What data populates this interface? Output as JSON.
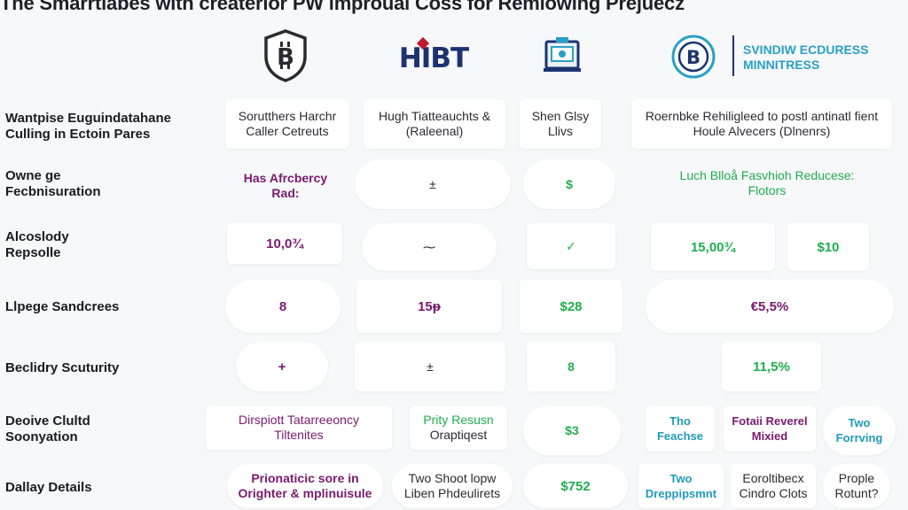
{
  "title": "The Smarrtlabes with createrlor PW improual Coss for Remlowing Prejuecz",
  "brand": {
    "hibt_text": "HIBT",
    "right_line1": "SVINDIW ECDURESS",
    "right_line2": "MINNITRESS",
    "colors": {
      "accent": "#2aa0c4",
      "navy": "#1d3370",
      "red": "#c0182c"
    }
  },
  "header_cells": {
    "c1": {
      "line1": "Sorutthers Harchr",
      "line2": "Caller Cetreuts"
    },
    "c2": {
      "line1": "Hugh Tiatteauchts &",
      "line2": "(Raleenal)"
    },
    "c3": {
      "line1": "Shen Glsy",
      "line2": "Llivs"
    },
    "c4": {
      "line1": "Roernbke Rehiligleed to postl antinatl fient",
      "line2": "Houle Alvecers (Dlnenrs)"
    }
  },
  "rows": [
    {
      "label1": "Wantpise Euguindatahane",
      "label2": "Culling in Ectoin Pares"
    },
    {
      "label1": "Owne ge",
      "label2": "Fecbnisuration"
    },
    {
      "label1": "Alcoslody",
      "label2": "Repsolle"
    },
    {
      "label1": "Llpege Sandcrees",
      "label2": ""
    },
    {
      "label1": "Beclidry Scuturity",
      "label2": ""
    },
    {
      "label1": "Deoive Clultd",
      "label2": "Soonyation"
    },
    {
      "label1": "Dallay Details",
      "label2": ""
    }
  ],
  "r2": {
    "c1a": "Has Afrcbercy",
    "c1b": "Rad:",
    "c2": "±",
    "c3": "$",
    "c4a": "Luch Blloå Fasvhioh Reducese:",
    "c4b": "Flotors"
  },
  "r3": {
    "c1": "10,0¾",
    "c2": "⁓",
    "c3": "✓",
    "c4": "15,00¾",
    "c5": "$10"
  },
  "r4": {
    "c1": "8",
    "c2": "15ᵽ",
    "c3": "$28",
    "c4": "€5,5%"
  },
  "r5": {
    "c1": "+",
    "c2": "±",
    "c3": "8",
    "c4": "11,5%"
  },
  "r6": {
    "c1a": "Dirspiott Tatarreeoncy",
    "c1b": "Tiltenites",
    "c2a": "Prity Resusn",
    "c2b": "Oraptiqest",
    "c3": "$3",
    "c4a": "Tho",
    "c4b": "Feachse",
    "c5a": "Fotaii Reverel",
    "c5b": "Mixied",
    "c6a": "Two",
    "c6b": "Forrving"
  },
  "r7": {
    "c1a": "Prionaticic sore in",
    "c1b": "Orighter & mplinuisule",
    "c2a": "Two Shoot lopw",
    "c2b": "Liben Phdeulirets",
    "c3": "$752",
    "c4a": "Two",
    "c4b": "Dreppipsmnt",
    "c5a": "Eoroltibecx",
    "c5b": "Cindro Clots",
    "c6a": "Prople",
    "c6b": "Rotunt?"
  }
}
